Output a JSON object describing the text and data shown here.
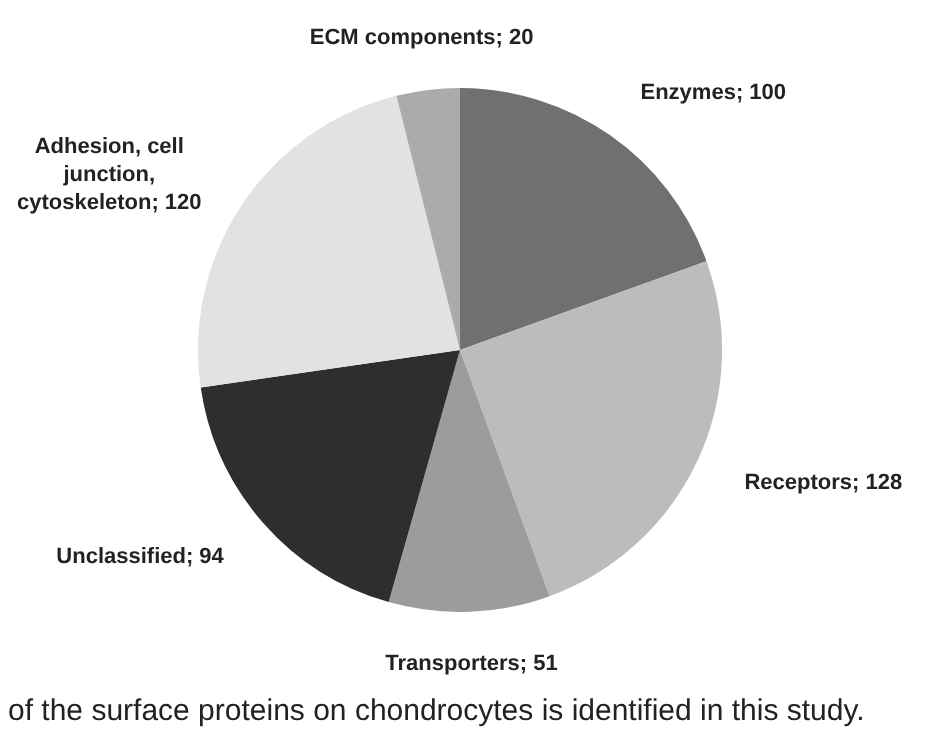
{
  "chart_data": {
    "type": "pie",
    "categories": [
      "Enzymes",
      "Receptors",
      "Transporters",
      "Unclassified",
      "Adhesion, cell junction, cytoskeleton",
      "ECM components"
    ],
    "values": [
      100,
      128,
      51,
      94,
      120,
      20
    ],
    "colors": [
      "#707070",
      "#bcbcbc",
      "#9c9c9c",
      "#2e2e2e",
      "#e2e2e2",
      "#ababab"
    ],
    "value_labels": [
      "; 100",
      "; 128",
      "; 51",
      "; 94",
      "; 120",
      "; 20"
    ],
    "legend": false,
    "annotations": [
      "of the surface proteins on chondrocytes is identified in this study."
    ]
  }
}
